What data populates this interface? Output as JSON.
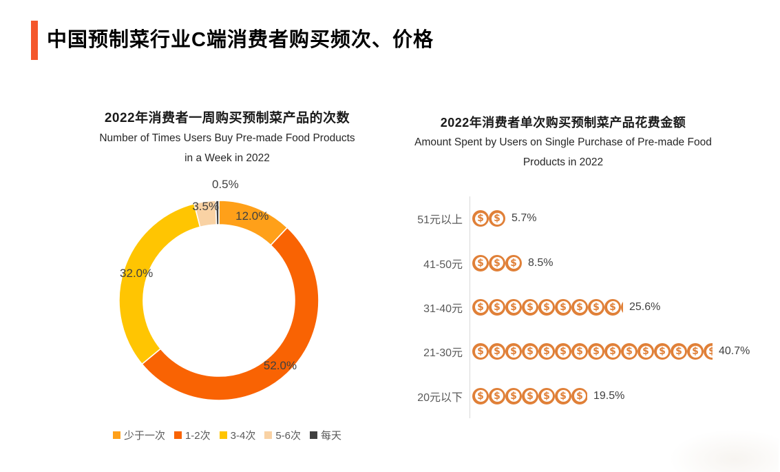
{
  "page": {
    "title": "中国预制菜行业C端消费者购买频次、价格",
    "accent_color": "#F4572B"
  },
  "left_chart": {
    "title_zh": "2022年消费者一周购买预制菜产品的次数",
    "title_en_line1": "Number of Times Users Buy Pre-made Food Products",
    "title_en_line2": "in a Week in 2022"
  },
  "right_chart": {
    "title_zh": "2022年消费者单次购买预制菜产品花费金额",
    "title_en_line1": "Amount Spent by Users on Single Purchase of Pre-made Food",
    "title_en_line2": "Products in 2022"
  },
  "chart_data": [
    {
      "type": "pie",
      "subtype": "donut",
      "title": "2022年消费者一周购买预制菜产品的次数",
      "subtitle": "Number of Times Users Buy Pre-made Food Products in a Week in 2022",
      "categories": [
        "少于一次",
        "1-2次",
        "3-4次",
        "5-6次",
        "每天"
      ],
      "values": [
        12.0,
        52.0,
        32.0,
        3.5,
        0.5
      ],
      "labels": [
        "12.0%",
        "52.0%",
        "32.0%",
        "3.5%",
        "0.5%"
      ],
      "colors": [
        "#FFA019",
        "#F96303",
        "#FFC502",
        "#F9D2A4",
        "#404040"
      ],
      "start_angle_deg": 0,
      "direction": "clockwise",
      "legend_position": "bottom",
      "label_color": "#404040"
    },
    {
      "type": "bar",
      "subtype": "pictogram-coins",
      "title": "2022年消费者单次购买预制菜产品花费金额",
      "subtitle": "Amount Spent by Users on Single Purchase of Pre-made Food Products in 2022",
      "categories": [
        "51元以上",
        "41-50元",
        "31-40元",
        "21-30元",
        "20元以下"
      ],
      "values": [
        5.7,
        8.5,
        25.6,
        40.7,
        19.5
      ],
      "labels": [
        "5.7%",
        "8.5%",
        "25.6%",
        "40.7%",
        "19.5%"
      ],
      "coin_unit_percent": 2.8,
      "coin_color": "#E08038",
      "axis_color": "#D9D9D9"
    }
  ]
}
